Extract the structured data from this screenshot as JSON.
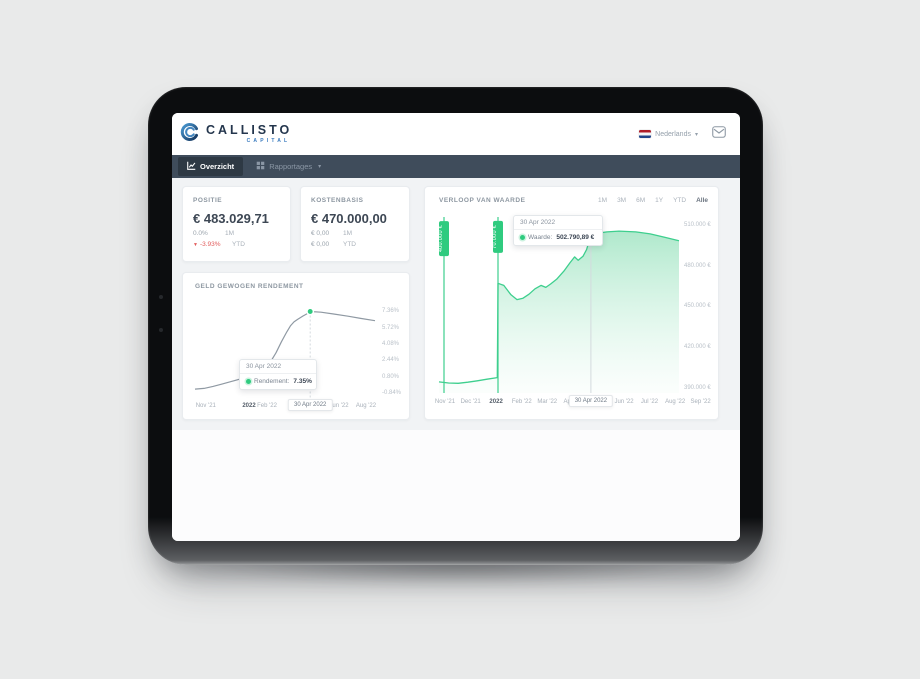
{
  "header": {
    "brand": "CALLISTO",
    "brand_sub": "CAPITAL",
    "language": "Nederlands",
    "language_caret": "▾"
  },
  "nav": {
    "caret": "▾",
    "items": [
      {
        "label": "Overzicht",
        "active": true
      },
      {
        "label": "Rapportages",
        "active": false
      }
    ]
  },
  "cards": {
    "positie": {
      "title": "POSITIE",
      "value": "€ 483.029,71",
      "row1": {
        "value": "0.0%",
        "period": "1M"
      },
      "row2": {
        "arrow": "▼",
        "value": "-3.93%",
        "period": "YTD"
      }
    },
    "kostenbasis": {
      "title": "KOSTENBASIS",
      "value": "€ 470.000,00",
      "row1": {
        "value": "€ 0,00",
        "period": "1M"
      },
      "row2": {
        "value": "€ 0,00",
        "period": "YTD"
      }
    }
  },
  "colors": {
    "accent_green": "#2fcb7f",
    "negative_red": "#e25c5c",
    "brand_navy": "#24364d",
    "brand_blue": "#3a7bbf",
    "nav_bg": "#3f4c5b"
  },
  "chart_data": [
    {
      "id": "rendement",
      "type": "line",
      "title": "GELD GEWOGEN RENDEMENT",
      "line_color": "#8f99a3",
      "line_width": 1.2,
      "dot_color": "#2fcb7f",
      "crosshair_dashed": true,
      "ylim": [
        -1.45,
        7.8
      ],
      "y_ticks": [
        {
          "label": "7.36%",
          "v": 7.36
        },
        {
          "label": "5.72%",
          "v": 5.72
        },
        {
          "label": "4.08%",
          "v": 4.08
        },
        {
          "label": "2.44%",
          "v": 2.44
        },
        {
          "label": "0.80%",
          "v": 0.8
        },
        {
          "label": "-0.84%",
          "v": -0.84
        }
      ],
      "x_labels": [
        "Nov '21",
        "2022",
        "Feb '22",
        "Apr '22",
        "Jun '22",
        "Aug '22"
      ],
      "x_pos": [
        0.06,
        0.3,
        0.4,
        0.58,
        0.8,
        0.95
      ],
      "bold_index": 1,
      "crosshair_label": "30 Apr 2022",
      "tooltip": {
        "date": "30 Apr 2022",
        "label": "Rendement:",
        "value": "7.35%"
      },
      "dot": {
        "x": 0.64,
        "y": 7.35
      },
      "points": [
        [
          0.0,
          -0.45
        ],
        [
          0.05,
          -0.38
        ],
        [
          0.1,
          -0.18
        ],
        [
          0.15,
          0.05
        ],
        [
          0.2,
          0.3
        ],
        [
          0.25,
          0.55
        ],
        [
          0.3,
          0.85
        ],
        [
          0.34,
          1.15
        ],
        [
          0.38,
          1.6
        ],
        [
          0.42,
          2.3
        ],
        [
          0.45,
          3.2
        ],
        [
          0.48,
          4.3
        ],
        [
          0.51,
          5.3
        ],
        [
          0.53,
          5.9
        ],
        [
          0.55,
          6.3
        ],
        [
          0.57,
          6.55
        ],
        [
          0.6,
          6.9
        ],
        [
          0.62,
          7.1
        ],
        [
          0.64,
          7.35
        ],
        [
          0.7,
          7.28
        ],
        [
          0.77,
          7.1
        ],
        [
          0.85,
          6.88
        ],
        [
          0.92,
          6.65
        ],
        [
          1.0,
          6.42
        ]
      ]
    },
    {
      "id": "waarde",
      "type": "area",
      "title": "VERLOOP VAN WAARDE",
      "ranges": [
        "1M",
        "3M",
        "6M",
        "1Y",
        "YTD",
        "Alle"
      ],
      "active_range": "Alle",
      "line_color": "#3ecf8e",
      "line_width": 1.3,
      "dot_color": "#2fcb7f",
      "fill_top": "rgba(110,214,162,0.55)",
      "fill_bottom": "rgba(180,236,208,0.05)",
      "marker_color": "#3ecf8e",
      "crosshair_full": true,
      "ylim": [
        386,
        516
      ],
      "y_ticks": [
        {
          "label": "510.000 €",
          "v": 510
        },
        {
          "label": "480.000 €",
          "v": 480
        },
        {
          "label": "450.000 €",
          "v": 450
        },
        {
          "label": "420.000 €",
          "v": 420
        },
        {
          "label": "390.000 €",
          "v": 390
        }
      ],
      "x_labels": [
        "Nov '21",
        "Dec '21",
        "2022",
        "Feb '22",
        "Mar '22",
        "Apr '22",
        "May '22",
        "Jun '22",
        "Jul '22",
        "Aug '22",
        "Sep '22"
      ],
      "x_pos": [
        0.025,
        0.132,
        0.238,
        0.345,
        0.451,
        0.558,
        0.664,
        0.771,
        0.877,
        0.984,
        1.09
      ],
      "bold_index": 2,
      "crosshair_label": "30 Apr 2022",
      "tooltip": {
        "date": "30 Apr 2022",
        "label": "Waarde:",
        "value": "502.790,89 €"
      },
      "dot": {
        "x": 0.633,
        "y": 502.79
      },
      "markers": [
        {
          "x": 0.021,
          "label": "400.000 €"
        },
        {
          "x": 0.246,
          "label": "70.000 €"
        }
      ],
      "points": [
        [
          0.0,
          394.2
        ],
        [
          0.04,
          393.4
        ],
        [
          0.08,
          393.2
        ],
        [
          0.12,
          394.0
        ],
        [
          0.16,
          395.0
        ],
        [
          0.2,
          396.2
        ],
        [
          0.243,
          397.4
        ],
        [
          0.246,
          467.0
        ],
        [
          0.27,
          465.5
        ],
        [
          0.3,
          458.5
        ],
        [
          0.325,
          455.0
        ],
        [
          0.35,
          456.0
        ],
        [
          0.375,
          459.0
        ],
        [
          0.4,
          463.0
        ],
        [
          0.425,
          465.5
        ],
        [
          0.445,
          464.0
        ],
        [
          0.465,
          466.5
        ],
        [
          0.49,
          470.0
        ],
        [
          0.52,
          476.0
        ],
        [
          0.545,
          482.0
        ],
        [
          0.565,
          486.5
        ],
        [
          0.58,
          484.0
        ],
        [
          0.6,
          487.0
        ],
        [
          0.615,
          492.0
        ],
        [
          0.633,
          502.8
        ],
        [
          0.66,
          504.0
        ],
        [
          0.7,
          505.0
        ],
        [
          0.75,
          505.6
        ],
        [
          0.82,
          505.0
        ],
        [
          0.88,
          503.5
        ],
        [
          0.94,
          501.0
        ],
        [
          1.0,
          498.5
        ]
      ]
    }
  ]
}
